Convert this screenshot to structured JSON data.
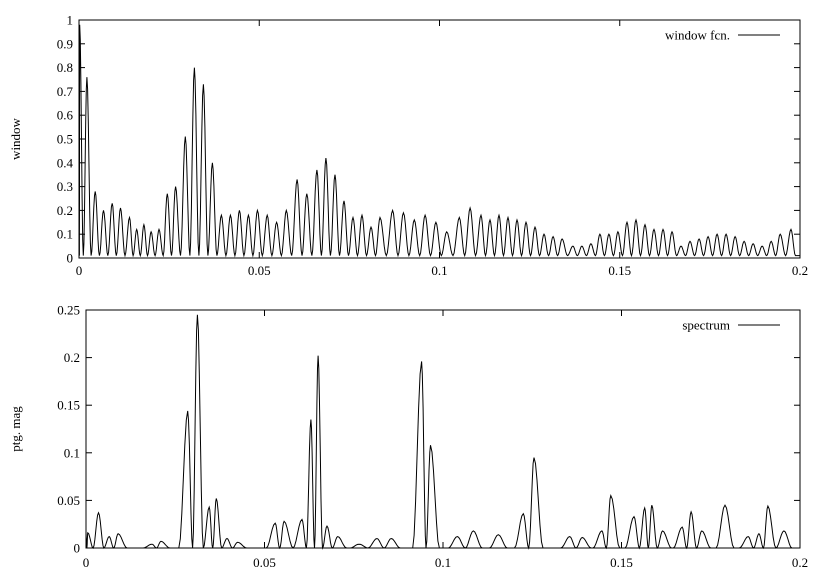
{
  "chart_data": [
    {
      "type": "line",
      "ylabel": "window",
      "xlim": [
        0,
        0.2
      ],
      "ylim": [
        0,
        1
      ],
      "xticks": [
        "0",
        "0.05",
        "0.1",
        "0.15",
        "0.2"
      ],
      "xtick_values": [
        0,
        0.05,
        0.1,
        0.15,
        0.2
      ],
      "yticks": [
        "0",
        "0.1",
        "0.2",
        "0.3",
        "0.4",
        "0.5",
        "0.6",
        "0.7",
        "0.8",
        "0.9",
        "1"
      ],
      "ytick_values": [
        0,
        0.1,
        0.2,
        0.3,
        0.4,
        0.5,
        0.6,
        0.7,
        0.8,
        0.9,
        1
      ],
      "legend_position": "top-right",
      "series": [
        {
          "name": "window fcn.",
          "peaks": [
            [
              0.0002,
              0.98
            ],
            [
              0.0022,
              0.76
            ],
            [
              0.0045,
              0.28
            ],
            [
              0.0068,
              0.2
            ],
            [
              0.0092,
              0.23
            ],
            [
              0.0115,
              0.21
            ],
            [
              0.014,
              0.17
            ],
            [
              0.016,
              0.12
            ],
            [
              0.018,
              0.14
            ],
            [
              0.02,
              0.11
            ],
            [
              0.0222,
              0.12
            ],
            [
              0.0245,
              0.27
            ],
            [
              0.0268,
              0.3
            ],
            [
              0.0295,
              0.51
            ],
            [
              0.032,
              0.8
            ],
            [
              0.0345,
              0.73
            ],
            [
              0.037,
              0.4
            ],
            [
              0.0395,
              0.18
            ],
            [
              0.042,
              0.18
            ],
            [
              0.0445,
              0.2
            ],
            [
              0.047,
              0.18
            ],
            [
              0.0495,
              0.2
            ],
            [
              0.0522,
              0.18
            ],
            [
              0.0548,
              0.15
            ],
            [
              0.0575,
              0.2
            ],
            [
              0.0605,
              0.33
            ],
            [
              0.0632,
              0.27
            ],
            [
              0.066,
              0.37
            ],
            [
              0.0685,
              0.42
            ],
            [
              0.071,
              0.35
            ],
            [
              0.0735,
              0.24
            ],
            [
              0.076,
              0.17
            ],
            [
              0.0785,
              0.18
            ],
            [
              0.081,
              0.13
            ],
            [
              0.0835,
              0.17
            ],
            [
              0.087,
              0.2
            ],
            [
              0.09,
              0.19
            ],
            [
              0.093,
              0.16
            ],
            [
              0.096,
              0.18
            ],
            [
              0.099,
              0.15
            ],
            [
              0.102,
              0.11
            ],
            [
              0.1055,
              0.17
            ],
            [
              0.1085,
              0.21
            ],
            [
              0.1115,
              0.18
            ],
            [
              0.114,
              0.16
            ],
            [
              0.1165,
              0.18
            ],
            [
              0.119,
              0.17
            ],
            [
              0.1215,
              0.16
            ],
            [
              0.124,
              0.15
            ],
            [
              0.1265,
              0.13
            ],
            [
              0.129,
              0.1
            ],
            [
              0.1315,
              0.09
            ],
            [
              0.134,
              0.08
            ],
            [
              0.137,
              0.05
            ],
            [
              0.1395,
              0.05
            ],
            [
              0.142,
              0.06
            ],
            [
              0.1445,
              0.1
            ],
            [
              0.147,
              0.1
            ],
            [
              0.1495,
              0.11
            ],
            [
              0.152,
              0.15
            ],
            [
              0.1545,
              0.16
            ],
            [
              0.157,
              0.14
            ],
            [
              0.1595,
              0.12
            ],
            [
              0.162,
              0.12
            ],
            [
              0.1645,
              0.11
            ],
            [
              0.167,
              0.05
            ],
            [
              0.1695,
              0.07
            ],
            [
              0.172,
              0.08
            ],
            [
              0.1745,
              0.09
            ],
            [
              0.177,
              0.1
            ],
            [
              0.1795,
              0.1
            ],
            [
              0.182,
              0.09
            ],
            [
              0.1845,
              0.07
            ],
            [
              0.187,
              0.06
            ],
            [
              0.1895,
              0.05
            ],
            [
              0.192,
              0.07
            ],
            [
              0.1945,
              0.1
            ],
            [
              0.1975,
              0.12
            ]
          ],
          "baseline": 0.01
        }
      ]
    },
    {
      "type": "line",
      "ylabel": "ptg. mag",
      "xlim": [
        0,
        0.2
      ],
      "ylim": [
        0,
        0.25
      ],
      "xticks": [
        "0",
        "0.05",
        "0.1",
        "0.15",
        "0.2"
      ],
      "xtick_values": [
        0,
        0.05,
        0.1,
        0.15,
        0.2
      ],
      "yticks": [
        "0",
        "0.05",
        "0.1",
        "0.15",
        "0.2",
        "0.25"
      ],
      "ytick_values": [
        0,
        0.05,
        0.1,
        0.15,
        0.2,
        0.25
      ],
      "legend_position": "top-right",
      "series": [
        {
          "name": "spectrum",
          "peaks": [
            [
              0.0005,
              0.016
            ],
            [
              0.0035,
              0.037
            ],
            [
              0.0065,
              0.012
            ],
            [
              0.009,
              0.015
            ],
            [
              0.0185,
              0.004
            ],
            [
              0.021,
              0.007
            ],
            [
              0.0285,
              0.144
            ],
            [
              0.0312,
              0.245
            ],
            [
              0.0345,
              0.043
            ],
            [
              0.0365,
              0.052
            ],
            [
              0.0395,
              0.01
            ],
            [
              0.0425,
              0.006
            ],
            [
              0.053,
              0.026
            ],
            [
              0.0555,
              0.028
            ],
            [
              0.0605,
              0.03
            ],
            [
              0.063,
              0.135
            ],
            [
              0.065,
              0.202
            ],
            [
              0.0675,
              0.023
            ],
            [
              0.0705,
              0.012
            ],
            [
              0.0765,
              0.004
            ],
            [
              0.0815,
              0.01
            ],
            [
              0.0855,
              0.01
            ],
            [
              0.094,
              0.196
            ],
            [
              0.0965,
              0.108
            ],
            [
              0.104,
              0.012
            ],
            [
              0.1085,
              0.018
            ],
            [
              0.1155,
              0.014
            ],
            [
              0.1225,
              0.036
            ],
            [
              0.1255,
              0.095
            ],
            [
              0.1355,
              0.012
            ],
            [
              0.139,
              0.011
            ],
            [
              0.1445,
              0.018
            ],
            [
              0.147,
              0.055
            ],
            [
              0.1535,
              0.033
            ],
            [
              0.1565,
              0.042
            ],
            [
              0.1585,
              0.045
            ],
            [
              0.1615,
              0.018
            ],
            [
              0.167,
              0.022
            ],
            [
              0.1695,
              0.038
            ],
            [
              0.1725,
              0.018
            ],
            [
              0.179,
              0.045
            ],
            [
              0.1855,
              0.012
            ],
            [
              0.1885,
              0.015
            ],
            [
              0.191,
              0.044
            ],
            [
              0.1955,
              0.018
            ]
          ],
          "baseline": 0.0
        }
      ]
    }
  ]
}
